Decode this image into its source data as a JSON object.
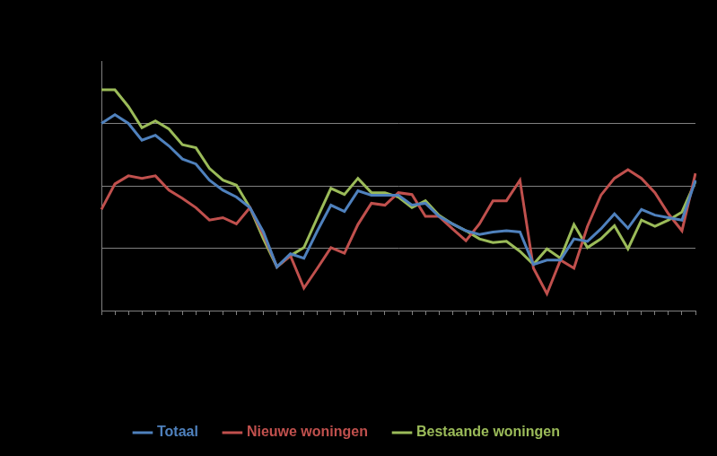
{
  "chart_data": {
    "type": "line",
    "categories": [
      null,
      null,
      null,
      null,
      null,
      null,
      null,
      null,
      null,
      null,
      null,
      null,
      null,
      null,
      null,
      null,
      null,
      null,
      null,
      null,
      null,
      null,
      null,
      null,
      null,
      null,
      null,
      null,
      null,
      null,
      null,
      null,
      null,
      null,
      null,
      null,
      null,
      null,
      null,
      null,
      null,
      null,
      null,
      null,
      null
    ],
    "series": [
      {
        "name": "Totaal",
        "color": "#4f81bd",
        "values": [
          3.0,
          3.14,
          3.0,
          2.73,
          2.81,
          2.64,
          2.43,
          2.35,
          2.09,
          1.93,
          1.82,
          1.65,
          1.26,
          0.7,
          0.91,
          0.84,
          1.28,
          1.69,
          1.59,
          1.92,
          1.85,
          1.85,
          1.85,
          1.69,
          1.72,
          1.51,
          1.39,
          1.28,
          1.22,
          1.26,
          1.28,
          1.26,
          0.74,
          0.81,
          0.81,
          1.15,
          1.11,
          1.31,
          1.55,
          1.32,
          1.62,
          1.53,
          1.49,
          1.45,
          2.09
        ]
      },
      {
        "name": "Nieuwe woningen",
        "color": "#c0504d",
        "values": [
          1.62,
          2.03,
          2.16,
          2.12,
          2.16,
          1.93,
          1.8,
          1.65,
          1.45,
          1.49,
          1.39,
          1.65,
          1.22,
          0.7,
          0.88,
          0.36,
          0.68,
          1.01,
          0.92,
          1.38,
          1.72,
          1.69,
          1.89,
          1.86,
          1.51,
          1.51,
          1.31,
          1.12,
          1.39,
          1.76,
          1.76,
          2.09,
          0.68,
          0.27,
          0.81,
          0.68,
          1.35,
          1.85,
          2.12,
          2.26,
          2.12,
          1.89,
          1.55,
          1.28,
          2.2
        ]
      },
      {
        "name": "Bestaande woningen",
        "color": "#9bbb59",
        "values": [
          3.54,
          3.54,
          3.27,
          2.93,
          3.04,
          2.91,
          2.66,
          2.61,
          2.28,
          2.09,
          2.01,
          1.65,
          1.15,
          0.7,
          0.88,
          1.01,
          1.49,
          1.96,
          1.86,
          2.12,
          1.89,
          1.89,
          1.82,
          1.65,
          1.76,
          1.53,
          1.39,
          1.28,
          1.15,
          1.09,
          1.11,
          0.95,
          0.74,
          0.99,
          0.84,
          1.38,
          1.01,
          1.15,
          1.36,
          0.99,
          1.45,
          1.35,
          1.45,
          1.58,
          2.07
        ]
      }
    ],
    "ylim": [
      0,
      4
    ],
    "yticks": [
      0,
      1,
      2,
      3,
      4
    ],
    "grid": true,
    "legend": "bottom",
    "tick_labels": false
  }
}
